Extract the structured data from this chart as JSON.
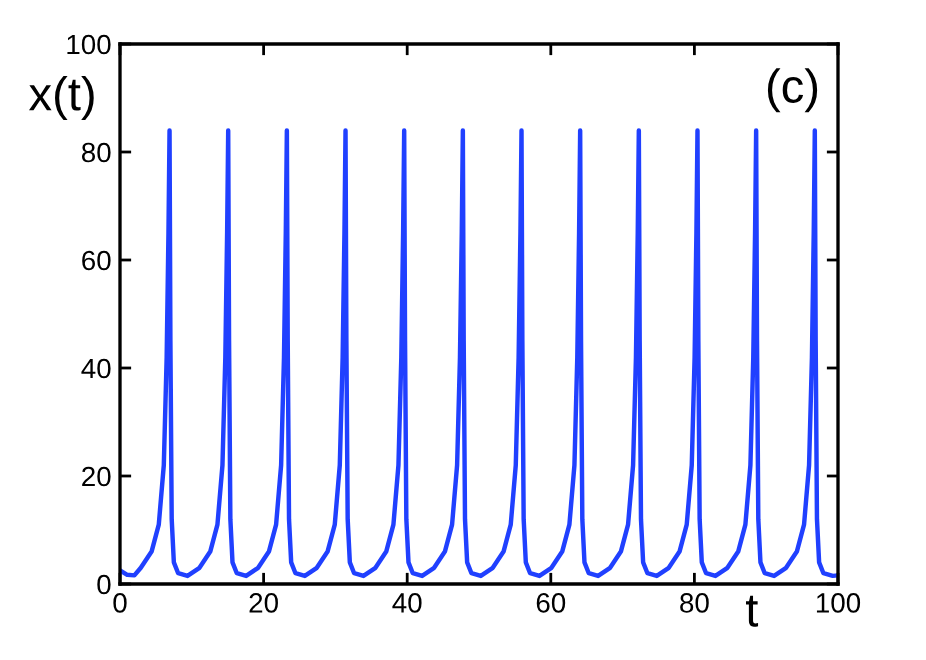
{
  "chart_data": {
    "type": "line",
    "xlabel": "t",
    "ylabel": "x(t)",
    "annotations": [
      "(c)"
    ],
    "xlim": [
      0,
      100
    ],
    "ylim": [
      0,
      100
    ],
    "xticks": [
      0,
      20,
      40,
      60,
      80,
      100
    ],
    "yticks": [
      0,
      20,
      40,
      60,
      80,
      100
    ],
    "grid": false,
    "marker": "none",
    "line_style": "solid",
    "series": [
      {
        "color": "#2040ff",
        "x": [
          0,
          1,
          2,
          2.9,
          4.4,
          5.4,
          6.1,
          6.5,
          6.75,
          6.9,
          7.02,
          7.2,
          7.5,
          8.1,
          9.4,
          11.07,
          12.57,
          13.57,
          14.27,
          14.67,
          14.92,
          15.07,
          15.19,
          15.37,
          15.67,
          16.27,
          17.57,
          19.24,
          20.74,
          21.74,
          22.44,
          22.84,
          23.09,
          23.24,
          23.36,
          23.54,
          23.84,
          24.44,
          25.74,
          27.41,
          28.91,
          29.91,
          30.61,
          31.01,
          31.26,
          31.41,
          31.53,
          31.71,
          32.01,
          32.61,
          33.91,
          35.58,
          37.08,
          38.08,
          38.78,
          39.18,
          39.43,
          39.58,
          39.7,
          39.88,
          40.18,
          40.78,
          42.08,
          43.75,
          45.25,
          46.25,
          46.95,
          47.35,
          47.6,
          47.75,
          47.87,
          48.05,
          48.35,
          48.95,
          50.25,
          51.92,
          53.42,
          54.42,
          55.12,
          55.52,
          55.77,
          55.92,
          56.04,
          56.22,
          56.52,
          57.12,
          58.42,
          60.09,
          61.59,
          62.59,
          63.29,
          63.69,
          63.94,
          64.09,
          64.21,
          64.39,
          64.69,
          65.29,
          66.59,
          68.26,
          69.76,
          70.76,
          71.46,
          71.86,
          72.11,
          72.26,
          72.38,
          72.56,
          72.86,
          73.46,
          74.76,
          76.43,
          77.93,
          78.93,
          79.63,
          80.03,
          80.28,
          80.43,
          80.55,
          80.73,
          81.03,
          81.63,
          82.93,
          84.6,
          86.1,
          87.1,
          87.8,
          88.2,
          88.45,
          88.6,
          88.72,
          88.9,
          89.2,
          89.8,
          91.1,
          92.77,
          94.27,
          95.27,
          95.97,
          96.37,
          96.62,
          96.77,
          96.89,
          97.07,
          97.37,
          97.97,
          99.27,
          100
        ],
        "values": [
          2.5,
          1.7,
          1.6,
          3,
          6,
          11,
          22,
          42,
          65,
          84,
          45,
          12,
          4,
          2,
          1.5,
          3,
          6,
          11,
          22,
          42,
          65,
          84,
          45,
          12,
          4,
          2,
          1.5,
          3,
          6,
          11,
          22,
          42,
          65,
          84,
          45,
          12,
          4,
          2,
          1.5,
          3,
          6,
          11,
          22,
          42,
          65,
          84,
          45,
          12,
          4,
          2,
          1.5,
          3,
          6,
          11,
          22,
          42,
          65,
          84,
          45,
          12,
          4,
          2,
          1.5,
          3,
          6,
          11,
          22,
          42,
          65,
          84,
          45,
          12,
          4,
          2,
          1.5,
          3,
          6,
          11,
          22,
          42,
          65,
          84,
          45,
          12,
          4,
          2,
          1.5,
          3,
          6,
          11,
          22,
          42,
          65,
          84,
          45,
          12,
          4,
          2,
          1.5,
          3,
          6,
          11,
          22,
          42,
          65,
          84,
          45,
          12,
          4,
          2,
          1.5,
          3,
          6,
          11,
          22,
          42,
          65,
          84,
          45,
          12,
          4,
          2,
          1.5,
          3,
          6,
          11,
          22,
          42,
          65,
          84,
          45,
          12,
          4,
          2,
          1.5,
          3,
          6,
          11,
          22,
          42,
          65,
          84,
          45,
          12,
          4,
          2,
          1.5,
          1.6
        ]
      }
    ]
  }
}
